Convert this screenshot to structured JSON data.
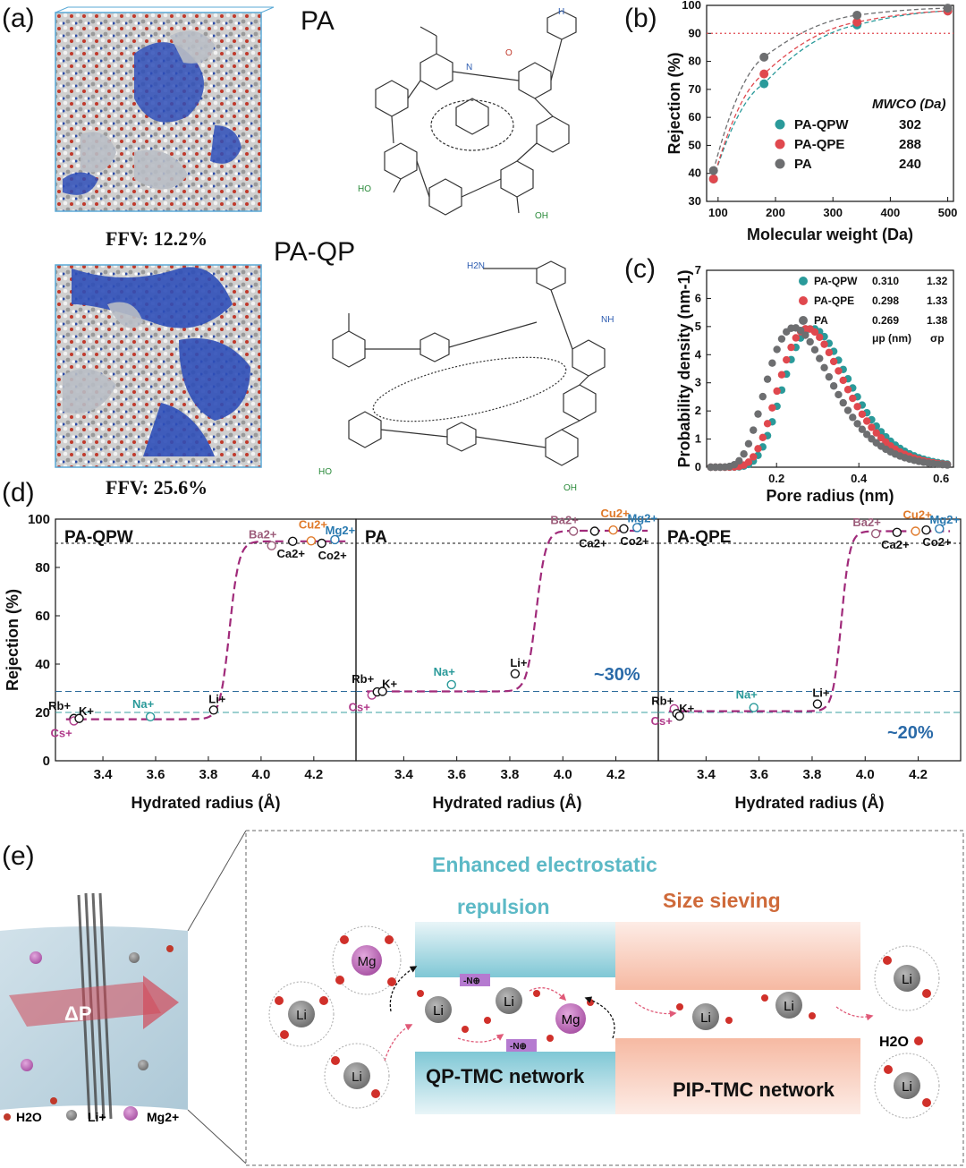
{
  "panels": {
    "a": {
      "letter": "(a)",
      "pa_title": "PA",
      "paqp_title": "PA-QP",
      "ffv_top": "FFV: 12.2%",
      "ffv_bottom": "FFV: 25.6%",
      "chem_labels": [
        "HO",
        "OH",
        "N",
        "H",
        "O",
        "NH",
        "H2N"
      ]
    },
    "b": {
      "letter": "(b)",
      "legend_header": "MWCO (Da)"
    },
    "c": {
      "letter": "(c)",
      "legend_col_mu": "μp (nm)",
      "legend_col_sigma": "σp"
    },
    "d": {
      "letter": "(d)",
      "annotation_pa": "~30%",
      "annotation_qpe": "~20%"
    },
    "e": {
      "letter": "(e)",
      "title_electrostatic_1": "Enhanced electrostatic",
      "title_electrostatic_2": "repulsion",
      "title_size": "Size sieving",
      "network_left": "QP-TMC network",
      "network_right": "PIP-TMC network",
      "pressure_label": "ΔP",
      "nplus_label": "-N⊕",
      "water_label": "H2O",
      "ion_li": "Li",
      "ion_mg": "Mg",
      "legend_h2o": "H2O",
      "legend_li": "Li+",
      "legend_mg": "Mg2+"
    }
  },
  "chart_data": [
    {
      "id": "b",
      "type": "scatter",
      "xlabel": "Molecular weight (Da)",
      "ylabel": "Rejection (%)",
      "xlim": [
        80,
        510
      ],
      "ylim": [
        30,
        100
      ],
      "xticks": [
        100,
        200,
        300,
        400,
        500
      ],
      "yticks": [
        30,
        40,
        50,
        60,
        70,
        80,
        90,
        100
      ],
      "reference_line_y": 90,
      "grid": false,
      "legend_placement": "bottom-right",
      "series": [
        {
          "name": "PA-QPW",
          "mwco": "302",
          "color": "#2a9a9a",
          "x": [
            92,
            180,
            342,
            500
          ],
          "y": [
            38,
            72,
            93,
            98
          ]
        },
        {
          "name": "PA-QPE",
          "mwco": "288",
          "color": "#e0484e",
          "x": [
            92,
            180,
            342,
            500
          ],
          "y": [
            38,
            75.5,
            94,
            98
          ]
        },
        {
          "name": "PA",
          "mwco": "240",
          "color": "#6d6e70",
          "x": [
            92,
            180,
            342,
            500
          ],
          "y": [
            41,
            81.5,
            96.5,
            99
          ]
        }
      ]
    },
    {
      "id": "c",
      "type": "scatter",
      "xlabel": "Pore radius (nm)",
      "ylabel": "Probability density  (nm-1)",
      "xlim": [
        0.03,
        0.63
      ],
      "ylim": [
        0,
        7
      ],
      "xticks": [
        0.2,
        0.4,
        0.6
      ],
      "yticks": [
        0,
        1,
        2,
        3,
        4,
        5,
        6,
        7
      ],
      "grid": false,
      "legend_placement": "top-right",
      "series": [
        {
          "name": "PA-QPW",
          "mu": "0.310",
          "sigma": "1.32",
          "mu_num": 0.31,
          "sigma_num": 1.32,
          "peak": 4.93,
          "color": "#2a9a9a"
        },
        {
          "name": "PA-QPE",
          "mu": "0.298",
          "sigma": "1.33",
          "mu_num": 0.298,
          "sigma_num": 1.33,
          "peak": 4.93,
          "color": "#e0484e"
        },
        {
          "name": "PA",
          "mu": "0.269",
          "sigma": "1.38",
          "mu_num": 0.269,
          "sigma_num": 1.38,
          "peak": 4.96,
          "color": "#6d6e70"
        }
      ]
    },
    {
      "id": "d",
      "type": "scatter",
      "ylabel": "Rejection (%)",
      "ylim": [
        0,
        100
      ],
      "yticks": [
        0,
        20,
        40,
        60,
        80,
        100
      ],
      "reference_lines": [
        {
          "y": 90,
          "style": "black-dotted"
        },
        {
          "y": 28.7,
          "style": "blue-dashed"
        },
        {
          "y": 20,
          "style": "teal-dashed"
        }
      ],
      "subplots": [
        {
          "title": "PA-QPW",
          "xlabel": "Hydrated radius (Å)",
          "xlim": [
            3.22,
            4.36
          ],
          "xticks": [
            3.4,
            3.6,
            3.8,
            4.0,
            4.2
          ],
          "fit": {
            "low": 17.2,
            "high": 90.8,
            "mid": 3.88,
            "width": 0.018
          },
          "points": [
            {
              "ion": "Rb+",
              "x": 3.29,
              "y": 17.5,
              "color": "#111111"
            },
            {
              "ion": "Cs+",
              "x": 3.29,
              "y": 16.5,
              "color": "#b03a8a"
            },
            {
              "ion": "K+",
              "x": 3.31,
              "y": 17.5,
              "color": "#111111"
            },
            {
              "ion": "Na+",
              "x": 3.58,
              "y": 18.2,
              "color": "#2a9a9a"
            },
            {
              "ion": "Li+",
              "x": 3.82,
              "y": 21,
              "color": "#111111"
            },
            {
              "ion": "Ba2+",
              "x": 4.04,
              "y": 89,
              "color": "#9c5c7a"
            },
            {
              "ion": "Ca2+",
              "x": 4.12,
              "y": 90.8,
              "color": "#111111"
            },
            {
              "ion": "Cu2+",
              "x": 4.19,
              "y": 91,
              "color": "#e07a2a"
            },
            {
              "ion": "Co2+",
              "x": 4.23,
              "y": 90,
              "color": "#111111"
            },
            {
              "ion": "Mg2+",
              "x": 4.28,
              "y": 91.5,
              "color": "#2a7ab0"
            }
          ],
          "ion_labels": [
            "Rb+",
            "K+",
            "Cs+",
            "Na+",
            "Li+",
            "Ba2+",
            "Cu2+",
            "Mg2+",
            "Ca2+",
            "Co2+"
          ]
        },
        {
          "title": "PA",
          "xlabel": "Hydrated radius (Å)",
          "xlim": [
            3.22,
            4.36
          ],
          "xticks": [
            3.4,
            3.6,
            3.8,
            4.0,
            4.2
          ],
          "fit": {
            "low": 28.7,
            "high": 95.2,
            "mid": 3.9,
            "width": 0.018
          },
          "points": [
            {
              "ion": "Cs+",
              "x": 3.28,
              "y": 27.2,
              "color": "#b03a8a"
            },
            {
              "ion": "Rb+",
              "x": 3.3,
              "y": 28.5,
              "color": "#111111"
            },
            {
              "ion": "K+",
              "x": 3.32,
              "y": 28.7,
              "color": "#111111"
            },
            {
              "ion": "Na+",
              "x": 3.58,
              "y": 31.5,
              "color": "#2a9a9a"
            },
            {
              "ion": "Li+",
              "x": 3.82,
              "y": 36,
              "color": "#111111"
            },
            {
              "ion": "Ba2+",
              "x": 4.04,
              "y": 95,
              "color": "#9c5c7a"
            },
            {
              "ion": "Ca2+",
              "x": 4.12,
              "y": 95,
              "color": "#111111"
            },
            {
              "ion": "Cu2+",
              "x": 4.19,
              "y": 95.5,
              "color": "#e07a2a"
            },
            {
              "ion": "Co2+",
              "x": 4.23,
              "y": 96,
              "color": "#111111"
            },
            {
              "ion": "Mg2+",
              "x": 4.28,
              "y": 96.5,
              "color": "#2a7ab0"
            }
          ],
          "ion_labels": [
            "Cs+",
            "K+",
            "Rb+",
            "Na+",
            "Li+",
            "Ba2+",
            "Mg2+",
            "Ca2+",
            "Cu2+",
            "Co2+"
          ]
        },
        {
          "title": "PA-QPE",
          "xlabel": "Hydrated radius (Å)",
          "xlim": [
            3.22,
            4.36
          ],
          "xticks": [
            3.4,
            3.6,
            3.8,
            4.0,
            4.2
          ],
          "fit": {
            "low": 20.5,
            "high": 95,
            "mid": 3.91,
            "width": 0.016
          },
          "points": [
            {
              "ion": "Cs+",
              "x": 3.28,
              "y": 21.5,
              "color": "#b03a8a"
            },
            {
              "ion": "Rb+",
              "x": 3.29,
              "y": 19.5,
              "color": "#111111"
            },
            {
              "ion": "K+",
              "x": 3.3,
              "y": 18.5,
              "color": "#111111"
            },
            {
              "ion": "Na+",
              "x": 3.58,
              "y": 22,
              "color": "#2a9a9a"
            },
            {
              "ion": "Li+",
              "x": 3.82,
              "y": 23.5,
              "color": "#111111"
            },
            {
              "ion": "Ba2+",
              "x": 4.04,
              "y": 94,
              "color": "#9c5c7a"
            },
            {
              "ion": "Ca2+",
              "x": 4.12,
              "y": 94.5,
              "color": "#111111"
            },
            {
              "ion": "Cu2+",
              "x": 4.19,
              "y": 95,
              "color": "#e07a2a"
            },
            {
              "ion": "Co2+",
              "x": 4.23,
              "y": 95.5,
              "color": "#111111"
            },
            {
              "ion": "Mg2+",
              "x": 4.28,
              "y": 96,
              "color": "#2a7ab0"
            }
          ],
          "ion_labels": [
            "Cs+",
            "Rb+",
            "K+",
            "Na+",
            "Li+",
            "Ba2+",
            "Mg2+",
            "Ca2+",
            "Cu2+",
            "Co2+"
          ]
        }
      ]
    }
  ]
}
